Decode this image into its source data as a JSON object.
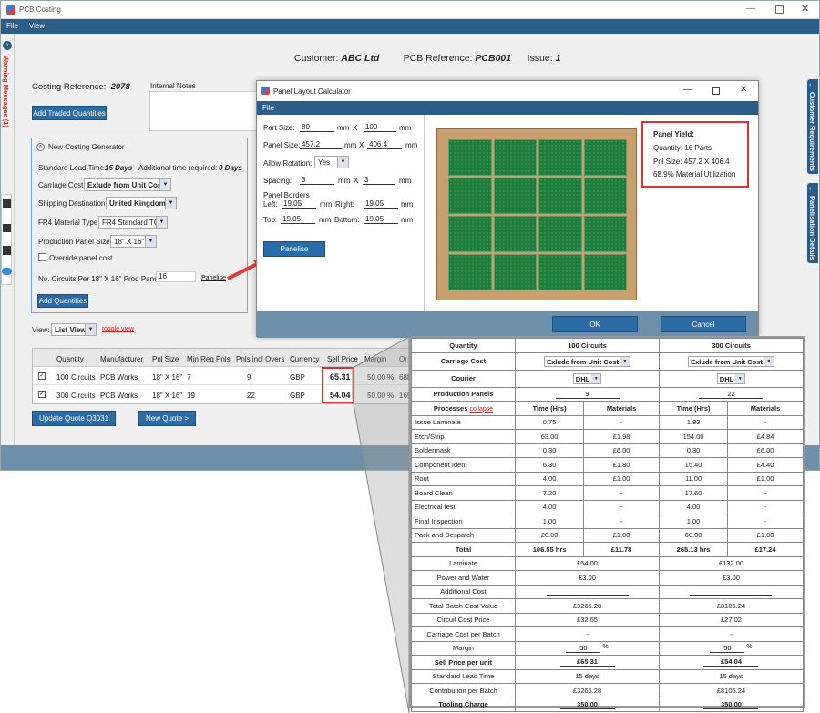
{
  "window": {
    "title": "PCB Costing",
    "menu": [
      "File",
      "View"
    ]
  },
  "warning": "Warning Messages (1)",
  "header": {
    "customer_label": "Customer:",
    "customer": "ABC Ltd",
    "pcb_ref_label": "PCB Reference:",
    "pcb_ref": "PCB001",
    "issue_label": "Issue:",
    "issue": "1"
  },
  "costing_ref_label": "Costing Reference:",
  "costing_ref": "2078",
  "internal_notes_label": "Internal Notes",
  "add_traded_label": "Add Traded Quantities",
  "generator": {
    "title": "New Costing Generator",
    "lead_time_label": "Standard Lead Time:",
    "lead_time": "15 Days",
    "additional_label": "Additional time required:",
    "additional": "0 Days",
    "carriage_label": "Carriage Cost:",
    "carriage": "Exlude from Unit Cost",
    "shipping_label": "Shipping Destination:",
    "shipping": "United Kingdom",
    "fr4_label": "FR4 Material Type:",
    "fr4": "FR4 Standard TG",
    "panel_size_label": "Production Panel Size:",
    "panel_size": "18\" X 16\"",
    "override_label": "Override panel cost",
    "circuits_label": "No. Circuits Per 18\" X 16\" Prod Panel:",
    "circuits": "16",
    "panelise_link": "Panelise",
    "add_quantities": "Add Quantities"
  },
  "view": {
    "label": "View:",
    "value": "List View",
    "toggle": "toggle view"
  },
  "list": {
    "headers": [
      "Quantity",
      "Manufacturer",
      "Pnl Size",
      "Min Req Pnls",
      "Pnls incl Overs",
      "Currency",
      "Sell Price",
      "Margin",
      "Or"
    ],
    "rows": [
      {
        "qty": "100",
        "unit": "Circuits",
        "mfr": "PCB Works",
        "pnl": "18\" X 16\"",
        "min": "7",
        "incl": "9",
        "cur": "GBP",
        "price": "65.31",
        "margin": "50.00",
        "pct": "%",
        "or": "688"
      },
      {
        "qty": "300",
        "unit": "Circuits",
        "mfr": "PCB Works",
        "pnl": "18\" X 16\"",
        "min": "19",
        "incl": "22",
        "cur": "GBP",
        "price": "54.04",
        "margin": "50.00",
        "pct": "%",
        "or": "165"
      }
    ]
  },
  "update_quote": "Update Quote Q3031",
  "new_quote": "New Quote >",
  "right_tabs": [
    "Customer Requirements",
    "Panelisation Details"
  ],
  "dialog": {
    "title": "Panel Layout Calculator",
    "menu": "File",
    "part_size_label": "Part Size:",
    "part_w": "80",
    "part_h": "100",
    "panel_size_label": "Panel Size:",
    "panel_w": "457.2",
    "panel_h": "406.4",
    "rotation_label": "Allow Rotation:",
    "rotation": "Yes",
    "spacing_label": "Spacing:",
    "spacing_x": "3",
    "spacing_y": "3",
    "borders_label": "Panel Borders",
    "left_label": "Left:",
    "left": "19.05",
    "right_label": "Right:",
    "right": "19.05",
    "top_label": "Top:",
    "top": "19.05",
    "bottom_label": "Bottom:",
    "bottom": "19.05",
    "mm": "mm",
    "x": "X",
    "panelise": "Panelise",
    "ok": "OK",
    "cancel": "Cancel",
    "yield_title": "Panel Yield:",
    "yield_qty": "Quantity:  16 Parts",
    "yield_size": "Pnl Size:  457.2  X  406.4",
    "yield_util": "68.9%  Material Utilization"
  },
  "detail": {
    "quantity_label": "Quantity",
    "cols": [
      "100 Circuits",
      "300 Circuits"
    ],
    "carriage_label": "Carriage Cost",
    "carriage": [
      "Exlude from Unit Cost",
      "Exlude from Unit Cost"
    ],
    "courier_label": "Courier",
    "courier": [
      "DHL",
      "DHL"
    ],
    "prod_panels_label": "Production Panels",
    "prod_panels": [
      "9",
      "22"
    ],
    "processes_label": "Processes",
    "collapse": "collapse",
    "time_label": "Time (Hrs)",
    "materials_label": "Materials",
    "processes": [
      {
        "name": "Issue Laminate",
        "t1": "0.75",
        "m1": "-",
        "t2": "1.83",
        "m2": "-"
      },
      {
        "name": "Etch/Strip",
        "t1": "63.00",
        "m1": "£1.98",
        "t2": "154.00",
        "m2": "£4.84"
      },
      {
        "name": "Soldermask",
        "t1": "0.30",
        "m1": "£6.00",
        "t2": "0.30",
        "m2": "£6.00"
      },
      {
        "name": "Component Ident",
        "t1": "6.30",
        "m1": "£1.80",
        "t2": "15.40",
        "m2": "£4.40"
      },
      {
        "name": "Rout",
        "t1": "4.00",
        "m1": "£1.00",
        "t2": "11.00",
        "m2": "£1.00"
      },
      {
        "name": "Board Clean",
        "t1": "7.20",
        "m1": "-",
        "t2": "17.60",
        "m2": "-"
      },
      {
        "name": "Electrical test",
        "t1": "4.00",
        "m1": "-",
        "t2": "4.00",
        "m2": "-"
      },
      {
        "name": "Final Inspection",
        "t1": "1.00",
        "m1": "-",
        "t2": "1.00",
        "m2": "-"
      },
      {
        "name": "Pack and Despatch",
        "t1": "20.00",
        "m1": "£1.00",
        "t2": "60.00",
        "m2": "£1.00"
      }
    ],
    "total_label": "Total",
    "total": [
      "106.55 hrs",
      "£11.78",
      "265.13 hrs",
      "£17.24"
    ],
    "summary": [
      {
        "label": "Laminate",
        "v1": "£54.00",
        "v2": "£132.00"
      },
      {
        "label": "Power and Water",
        "v1": "£3.00",
        "v2": "£3.00"
      },
      {
        "label": "Additional Cost",
        "v1": "",
        "v2": ""
      },
      {
        "label": "Total Batch Cost Value",
        "v1": "£3265.28",
        "v2": "£8106.24"
      },
      {
        "label": "Circuit Cost Price",
        "v1": "£32.65",
        "v2": "£27.02"
      },
      {
        "label": "Carriage Cost per Batch",
        "v1": "-",
        "v2": "-"
      },
      {
        "label": "Margin",
        "v1": "50",
        "v2": "50"
      },
      {
        "label": "Sell Price per unit",
        "v1": "£65.31",
        "v2": "£54.04"
      },
      {
        "label": "Standard Lead Time",
        "v1": "15 days",
        "v2": "15 days"
      },
      {
        "label": "Contribution per Batch",
        "v1": "£3265.28",
        "v2": "£8106.24"
      },
      {
        "label": "Tooling Charge",
        "v1": "350.00",
        "v2": "350.00"
      }
    ],
    "pct": "%"
  },
  "colors": {
    "accent": "#2b6ca6",
    "menubar": "#2a5d8a",
    "highlight": "#e03030",
    "pcb_green": "#1f7a3c",
    "panel_tan": "#c9a06c"
  }
}
